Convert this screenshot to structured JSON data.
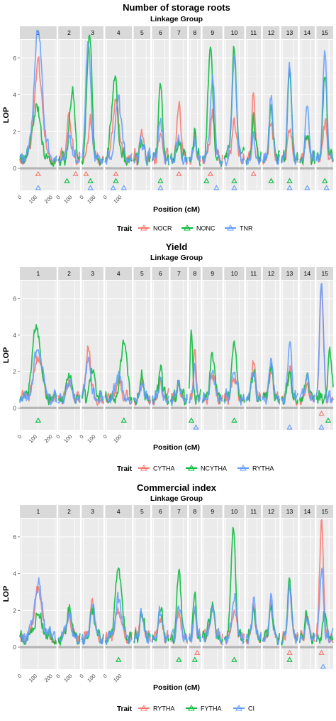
{
  "chart_data": [
    {
      "type": "line",
      "title": "Number of storage roots",
      "subtitle": "Linkage Group",
      "xlabel": "Position (cM)",
      "ylabel": "LOP",
      "ylim": [
        -1.2,
        7.0
      ],
      "yticks": [
        0,
        2,
        4,
        6
      ],
      "facets": [
        "1",
        "2",
        "3",
        "4",
        "5",
        "6",
        "7",
        "8",
        "9",
        "10",
        "11",
        "12",
        "13",
        "14",
        "15"
      ],
      "xticks": [
        "0",
        "100",
        "200"
      ],
      "grid": true,
      "legend_title": "Trait",
      "legend_position": "bottom",
      "series": [
        {
          "name": "NOCR",
          "color": "#f8766d",
          "peaks": [
            [
              0,
              0.5,
              5.0
            ],
            [
              1,
              0.5,
              2.2
            ],
            [
              2,
              0.4,
              2.0
            ],
            [
              3,
              0.4,
              3.3
            ],
            [
              4,
              0.5,
              1.4
            ],
            [
              5,
              0.5,
              1.5
            ],
            [
              6,
              0.5,
              3.2
            ],
            [
              7,
              0.5,
              1.4
            ],
            [
              8,
              0.5,
              2.2
            ],
            [
              9,
              0.5,
              2.0
            ],
            [
              10,
              0.5,
              3.3
            ],
            [
              11,
              0.5,
              2.0
            ],
            [
              12,
              0.5,
              1.8
            ],
            [
              13,
              0.5,
              1.3
            ],
            [
              14,
              0.5,
              2.0
            ]
          ],
          "markers": [
            [
              0,
              0.5
            ],
            [
              1,
              0.8
            ],
            [
              2,
              0.2
            ],
            [
              3,
              0.4
            ],
            [
              6,
              0.5
            ],
            [
              8,
              0.4
            ],
            [
              10,
              0.5
            ]
          ]
        },
        {
          "name": "NONC",
          "color": "#00ba38",
          "peaks": [
            [
              0,
              0.45,
              2.8
            ],
            [
              1,
              0.65,
              3.8
            ],
            [
              2,
              0.35,
              7.0
            ],
            [
              3,
              0.35,
              4.4
            ],
            [
              4,
              0.5,
              1.0
            ],
            [
              5,
              0.5,
              4.3
            ],
            [
              6,
              0.5,
              1.0
            ],
            [
              7,
              0.5,
              1.8
            ],
            [
              8,
              0.4,
              6.5
            ],
            [
              9,
              0.5,
              6.0
            ],
            [
              10,
              0.5,
              2.0
            ],
            [
              11,
              0.5,
              2.9
            ],
            [
              12,
              0.5,
              5.0
            ],
            [
              13,
              0.5,
              1.5
            ],
            [
              14,
              0.5,
              4.8
            ]
          ],
          "markers": [
            [
              1,
              0.4
            ],
            [
              2,
              0.4
            ],
            [
              3,
              0.4
            ],
            [
              5,
              0.5
            ],
            [
              8,
              0.2
            ],
            [
              9,
              0.5
            ],
            [
              11,
              0.5
            ],
            [
              12,
              0.5
            ],
            [
              14,
              0.5
            ]
          ]
        },
        {
          "name": "TNR",
          "color": "#619cff",
          "peaks": [
            [
              0,
              0.5,
              6.8
            ],
            [
              1,
              0.5,
              1.3
            ],
            [
              2,
              0.3,
              6.5
            ],
            [
              3,
              0.5,
              3.2
            ],
            [
              4,
              0.5,
              0.9
            ],
            [
              5,
              0.5,
              2.0
            ],
            [
              6,
              0.5,
              1.2
            ],
            [
              7,
              0.5,
              1.0
            ],
            [
              8,
              0.5,
              4.4
            ],
            [
              9,
              0.5,
              5.4
            ],
            [
              10,
              0.5,
              1.0
            ],
            [
              11,
              0.5,
              3.4
            ],
            [
              12,
              0.5,
              5.3
            ],
            [
              13,
              0.5,
              3.1
            ],
            [
              14,
              0.5,
              6.0
            ]
          ],
          "markers": [
            [
              0,
              0.5
            ],
            [
              2,
              0.4
            ],
            [
              3,
              0.3
            ],
            [
              3,
              0.7
            ],
            [
              5,
              0.5
            ],
            [
              8,
              0.7
            ],
            [
              9,
              0.5
            ],
            [
              12,
              0.5
            ],
            [
              13,
              0.5
            ],
            [
              14,
              0.6
            ]
          ]
        }
      ]
    },
    {
      "type": "line",
      "title": "Yield",
      "subtitle": "Linkage Group",
      "xlabel": "Position (cM)",
      "ylabel": "LOP",
      "ylim": [
        -1.2,
        7.0
      ],
      "yticks": [
        0,
        2,
        4,
        6
      ],
      "facets": [
        "1",
        "2",
        "3",
        "4",
        "5",
        "6",
        "7",
        "8",
        "9",
        "10",
        "11",
        "12",
        "13",
        "14",
        "15"
      ],
      "xticks": [
        "0",
        "100",
        "200"
      ],
      "grid": true,
      "legend_title": "Trait",
      "legend_position": "bottom",
      "series": [
        {
          "name": "CYTHA",
          "color": "#f8766d",
          "peaks": [
            [
              0,
              0.5,
              2.4
            ],
            [
              1,
              0.5,
              1.0
            ],
            [
              2,
              0.3,
              2.7
            ],
            [
              3,
              0.5,
              1.0
            ],
            [
              4,
              0.5,
              0.9
            ],
            [
              5,
              0.5,
              0.9
            ],
            [
              6,
              0.5,
              0.8
            ],
            [
              7,
              0.5,
              2.6
            ],
            [
              8,
              0.5,
              1.4
            ],
            [
              9,
              0.5,
              1.2
            ],
            [
              10,
              0.5,
              2.2
            ],
            [
              11,
              0.5,
              1.6
            ],
            [
              12,
              0.5,
              1.4
            ],
            [
              13,
              0.5,
              0.9
            ],
            [
              14,
              0.3,
              6.2
            ]
          ],
          "markers": [
            [
              14,
              0.3
            ]
          ]
        },
        {
          "name": "NCYTHA",
          "color": "#00ba38",
          "peaks": [
            [
              0,
              0.45,
              3.9
            ],
            [
              1,
              0.5,
              1.4
            ],
            [
              2,
              0.5,
              1.7
            ],
            [
              3,
              0.7,
              3.2
            ],
            [
              4,
              0.5,
              1.2
            ],
            [
              5,
              0.5,
              1.6
            ],
            [
              6,
              0.5,
              0.9
            ],
            [
              7,
              0.2,
              3.6
            ],
            [
              8,
              0.5,
              2.5
            ],
            [
              9,
              0.5,
              3.3
            ],
            [
              10,
              0.5,
              1.5
            ],
            [
              11,
              0.5,
              1.9
            ],
            [
              12,
              0.5,
              1.4
            ],
            [
              13,
              0.5,
              1.4
            ],
            [
              14,
              0.8,
              2.5
            ]
          ],
          "markers": [
            [
              0,
              0.5
            ],
            [
              3,
              0.7
            ],
            [
              7,
              0.2
            ],
            [
              9,
              0.5
            ],
            [
              14,
              0.7
            ]
          ]
        },
        {
          "name": "RYTHA",
          "color": "#619cff",
          "peaks": [
            [
              0,
              0.5,
              2.8
            ],
            [
              1,
              0.5,
              1.0
            ],
            [
              2,
              0.3,
              2.3
            ],
            [
              3,
              0.5,
              1.3
            ],
            [
              4,
              0.5,
              0.9
            ],
            [
              5,
              0.5,
              1.0
            ],
            [
              6,
              0.5,
              0.9
            ],
            [
              7,
              0.5,
              1.7
            ],
            [
              8,
              0.5,
              1.5
            ],
            [
              9,
              0.5,
              1.5
            ],
            [
              10,
              0.5,
              1.6
            ],
            [
              11,
              0.5,
              2.1
            ],
            [
              12,
              0.5,
              3.1
            ],
            [
              13,
              0.5,
              1.2
            ],
            [
              14,
              0.3,
              6.4
            ]
          ],
          "markers": [
            [
              7,
              0.6
            ],
            [
              12,
              0.5
            ],
            [
              14,
              0.3
            ]
          ]
        }
      ]
    },
    {
      "type": "line",
      "title": "Commercial index",
      "subtitle": "Linkage Group",
      "xlabel": "Position (cM)",
      "ylabel": "LOP",
      "ylim": [
        -1.2,
        7.0
      ],
      "yticks": [
        0,
        2,
        4,
        6
      ],
      "facets": [
        "1",
        "2",
        "3",
        "4",
        "5",
        "6",
        "7",
        "8",
        "9",
        "10",
        "11",
        "12",
        "13",
        "14",
        "15"
      ],
      "xticks": [
        "0",
        "100",
        "200"
      ],
      "grid": true,
      "legend_title": "Trait",
      "legend_position": "bottom",
      "series": [
        {
          "name": "RYTHA",
          "color": "#f8766d",
          "peaks": [
            [
              0,
              0.5,
              2.5
            ],
            [
              1,
              0.5,
              1.2
            ],
            [
              2,
              0.5,
              2.0
            ],
            [
              3,
              0.5,
              1.5
            ],
            [
              4,
              0.5,
              1.2
            ],
            [
              5,
              0.5,
              1.2
            ],
            [
              6,
              0.5,
              1.3
            ],
            [
              7,
              0.5,
              1.6
            ],
            [
              8,
              0.5,
              1.6
            ],
            [
              9,
              0.5,
              1.5
            ],
            [
              10,
              0.5,
              1.6
            ],
            [
              11,
              0.5,
              1.9
            ],
            [
              12,
              0.5,
              2.6
            ],
            [
              13,
              0.5,
              1.1
            ],
            [
              14,
              0.3,
              6.4
            ]
          ],
          "markers": [
            [
              7,
              0.7
            ],
            [
              12,
              0.5
            ],
            [
              14,
              0.3
            ]
          ]
        },
        {
          "name": "FYTHA",
          "color": "#00ba38",
          "peaks": [
            [
              0,
              0.5,
              1.2
            ],
            [
              1,
              0.5,
              1.6
            ],
            [
              2,
              0.5,
              1.4
            ],
            [
              3,
              0.5,
              3.9
            ],
            [
              4,
              0.5,
              1.5
            ],
            [
              5,
              0.5,
              1.7
            ],
            [
              6,
              0.5,
              3.9
            ],
            [
              7,
              0.5,
              2.8
            ],
            [
              8,
              0.5,
              1.8
            ],
            [
              9,
              0.45,
              6.0
            ],
            [
              10,
              0.5,
              1.6
            ],
            [
              11,
              0.5,
              1.7
            ],
            [
              12,
              0.5,
              3.3
            ],
            [
              13,
              0.5,
              1.3
            ],
            [
              14,
              0.5,
              1.4
            ]
          ],
          "markers": [
            [
              3,
              0.5
            ],
            [
              6,
              0.5
            ],
            [
              7,
              0.5
            ],
            [
              9,
              0.5
            ],
            [
              12,
              0.5
            ]
          ]
        },
        {
          "name": "CI",
          "color": "#619cff",
          "peaks": [
            [
              0,
              0.5,
              2.8
            ],
            [
              1,
              0.5,
              1.4
            ],
            [
              2,
              0.5,
              1.8
            ],
            [
              3,
              0.5,
              2.0
            ],
            [
              4,
              0.5,
              1.3
            ],
            [
              5,
              0.5,
              1.5
            ],
            [
              6,
              0.5,
              1.8
            ],
            [
              7,
              0.5,
              1.8
            ],
            [
              8,
              0.5,
              1.6
            ],
            [
              9,
              0.5,
              2.2
            ],
            [
              10,
              0.5,
              1.7
            ],
            [
              11,
              0.5,
              2.1
            ],
            [
              12,
              0.5,
              2.9
            ],
            [
              13,
              0.5,
              1.2
            ],
            [
              14,
              0.3,
              3.8
            ]
          ],
          "markers": [
            [
              14,
              0.4
            ]
          ]
        }
      ]
    }
  ]
}
